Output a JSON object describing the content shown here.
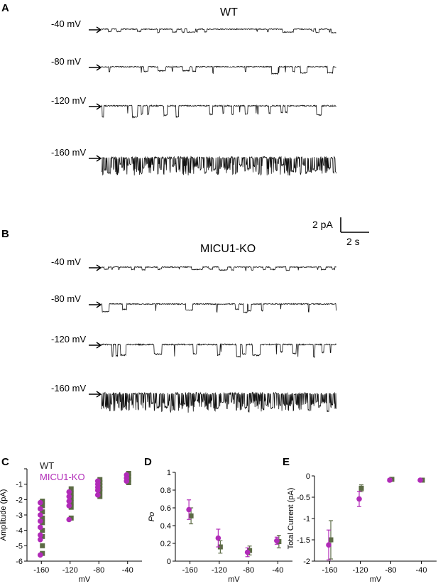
{
  "figure": {
    "panel_A": {
      "letter": "A",
      "condition": "WT",
      "traces": [
        {
          "label": "-40 mV",
          "kind": "flicker",
          "amp": 5,
          "noise": 0.6,
          "density": 0.13
        },
        {
          "label": "-80 mV",
          "kind": "sparse",
          "amp": 10,
          "noise": 0.7,
          "density": 0.05
        },
        {
          "label": "-120 mV",
          "kind": "sparse",
          "amp": 16,
          "noise": 0.9,
          "density": 0.09
        },
        {
          "label": "-160 mV",
          "kind": "dense",
          "amp": 24,
          "noise": 1.6,
          "density": 0.5
        }
      ]
    },
    "scale_bar": {
      "current": "2 pA",
      "time": "2 s"
    },
    "panel_B": {
      "letter": "B",
      "condition": "MICU1-KO",
      "traces": [
        {
          "label": "-40 mV",
          "kind": "flicker",
          "amp": 5,
          "noise": 0.6,
          "density": 0.12
        },
        {
          "label": "-80 mV",
          "kind": "sparse",
          "amp": 12,
          "noise": 0.7,
          "density": 0.06
        },
        {
          "label": "-120 mV",
          "kind": "sparse",
          "amp": 18,
          "noise": 0.9,
          "density": 0.1
        },
        {
          "label": "-160 mV",
          "kind": "dense",
          "amp": 26,
          "noise": 1.6,
          "density": 0.55
        }
      ]
    },
    "colors": {
      "wt": "#5c6b45",
      "ko": "#b12bb8",
      "trace": "#111111"
    }
  },
  "chart_data": [
    {
      "panel": "C",
      "type": "scatter",
      "ylabel": "Amplitude (pA)",
      "xlabel": "mV",
      "categories": [
        "-160",
        "-120",
        "-80",
        "-40"
      ],
      "ylim": [
        -6,
        0
      ],
      "yticks": [
        0,
        -1,
        -2,
        -3,
        -4,
        -5,
        -6
      ],
      "yticklabels": [
        "",
        "-1",
        "-2",
        "-3",
        "-4",
        "-5",
        "-6"
      ],
      "legend": [
        "WT",
        "MICU1-KO"
      ],
      "series": [
        {
          "name": "WT",
          "marker": "square",
          "points": [
            [
              "-160",
              -2.1
            ],
            [
              "-160",
              -2.4
            ],
            [
              "-160",
              -2.8
            ],
            [
              "-160",
              -3.2
            ],
            [
              "-160",
              -3.5
            ],
            [
              "-160",
              -4.0
            ],
            [
              "-160",
              -4.4
            ],
            [
              "-160",
              -5.0
            ],
            [
              "-160",
              -5.5
            ],
            [
              "-120",
              -1.3
            ],
            [
              "-120",
              -1.6
            ],
            [
              "-120",
              -1.9
            ],
            [
              "-120",
              -2.2
            ],
            [
              "-120",
              -2.5
            ],
            [
              "-120",
              -3.2
            ],
            [
              "-80",
              -0.7
            ],
            [
              "-80",
              -0.9
            ],
            [
              "-80",
              -1.1
            ],
            [
              "-80",
              -1.3
            ],
            [
              "-80",
              -1.5
            ],
            [
              "-80",
              -1.8
            ],
            [
              "-40",
              -0.3
            ],
            [
              "-40",
              -0.5
            ],
            [
              "-40",
              -0.7
            ],
            [
              "-40",
              -0.9
            ]
          ]
        },
        {
          "name": "MICU1-KO",
          "marker": "circle",
          "points": [
            [
              "-160",
              -2.2
            ],
            [
              "-160",
              -2.6
            ],
            [
              "-160",
              -3.0
            ],
            [
              "-160",
              -3.4
            ],
            [
              "-160",
              -3.8
            ],
            [
              "-160",
              -4.3
            ],
            [
              "-160",
              -4.6
            ],
            [
              "-160",
              -5.6
            ],
            [
              "-120",
              -1.5
            ],
            [
              "-120",
              -1.8
            ],
            [
              "-120",
              -2.1
            ],
            [
              "-120",
              -2.4
            ],
            [
              "-120",
              -3.3
            ],
            [
              "-80",
              -0.8
            ],
            [
              "-80",
              -1.0
            ],
            [
              "-80",
              -1.2
            ],
            [
              "-80",
              -1.4
            ],
            [
              "-80",
              -1.7
            ],
            [
              "-40",
              -0.4
            ],
            [
              "-40",
              -0.6
            ],
            [
              "-40",
              -0.8
            ]
          ]
        }
      ]
    },
    {
      "panel": "D",
      "type": "scatter",
      "ylabel": "Po",
      "xlabel": "mV",
      "categories": [
        "-160",
        "-120",
        "-80",
        "-40"
      ],
      "ylim": [
        0,
        1
      ],
      "yticks": [
        0,
        0.2,
        0.4,
        0.6,
        0.8,
        1
      ],
      "yticklabels": [
        "0",
        "0.2",
        "0.4",
        "0.6",
        "0.8",
        "1"
      ],
      "series": [
        {
          "name": "WT",
          "marker": "square",
          "values": [
            0.51,
            0.16,
            0.12,
            0.22
          ],
          "errors": [
            0.09,
            0.07,
            0.05,
            0.07
          ]
        },
        {
          "name": "MICU1-KO",
          "marker": "circle",
          "values": [
            0.58,
            0.26,
            0.1,
            0.23
          ],
          "errors": [
            0.11,
            0.1,
            0.05,
            0.04
          ]
        }
      ]
    },
    {
      "panel": "E",
      "type": "scatter",
      "ylabel": "Total Current (pA)",
      "xlabel": "mV",
      "categories": [
        "-160",
        "-120",
        "-80",
        "-40"
      ],
      "ylim": [
        -2,
        0
      ],
      "yticks": [
        0,
        -0.5,
        -1,
        -1.5,
        -2
      ],
      "yticklabels": [
        "0",
        "-0.5",
        "-1",
        "-1.5",
        "-2"
      ],
      "series": [
        {
          "name": "WT",
          "marker": "square",
          "values": [
            -1.5,
            -0.29,
            -0.08,
            -0.1
          ],
          "errors": [
            0.45,
            0.08,
            0.04,
            0.03
          ]
        },
        {
          "name": "MICU1-KO",
          "marker": "circle",
          "values": [
            -1.62,
            -0.54,
            -0.1,
            -0.1
          ],
          "errors": [
            0.35,
            0.18,
            0.04,
            0.03
          ]
        }
      ]
    }
  ]
}
